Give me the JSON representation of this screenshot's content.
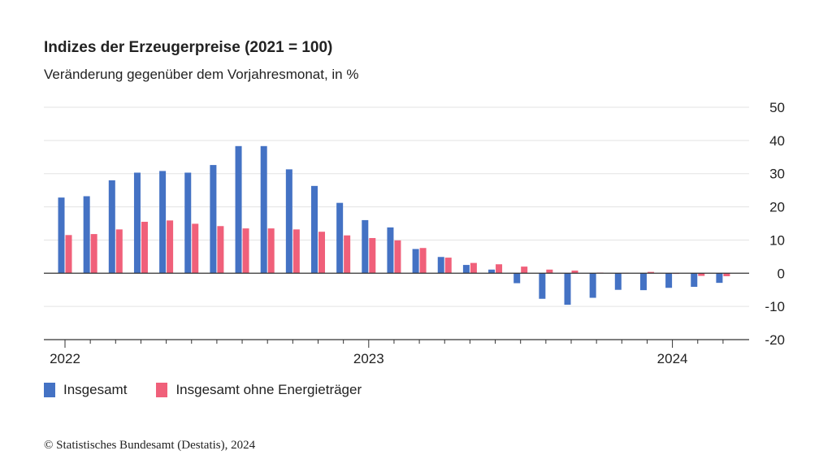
{
  "title": "Indizes der Erzeugerpreise (2021 = 100)",
  "subtitle": "Veränderung gegenüber dem Vorjahresmonat, in %",
  "footer": "© Statistisches Bundesamt (Destatis), 2024",
  "colors": {
    "blue": "#4472c4",
    "red": "#f0607a",
    "grid": "#e3e3e3",
    "axis": "#333333"
  },
  "chart_data": {
    "type": "bar",
    "ylim": [
      -20,
      50
    ],
    "yticks": [
      50,
      40,
      30,
      20,
      10,
      0,
      -10,
      -20
    ],
    "year_labels": [
      {
        "label": "2022",
        "index": 0
      },
      {
        "label": "2023",
        "index": 12
      },
      {
        "label": "2024",
        "index": 24
      }
    ],
    "categories": [
      "2022-01",
      "2022-02",
      "2022-03",
      "2022-04",
      "2022-05",
      "2022-06",
      "2022-07",
      "2022-08",
      "2022-09",
      "2022-10",
      "2022-11",
      "2022-12",
      "2023-01",
      "2023-02",
      "2023-03",
      "2023-04",
      "2023-05",
      "2023-06",
      "2023-07",
      "2023-08",
      "2023-09",
      "2023-10",
      "2023-11",
      "2023-12",
      "2024-01",
      "2024-02",
      "2024-03"
    ],
    "series": [
      {
        "name": "Insgesamt",
        "values": [
          22.8,
          23.2,
          28.0,
          30.3,
          30.8,
          30.3,
          32.6,
          38.3,
          38.3,
          31.3,
          26.3,
          21.2,
          16.0,
          13.8,
          7.3,
          4.9,
          2.5,
          1.1,
          -3.0,
          -7.7,
          -9.5,
          -7.4,
          -5.0,
          -5.1,
          -4.4,
          -4.1,
          -2.9
        ]
      },
      {
        "name": "Insgesamt ohne Energieträger",
        "values": [
          11.5,
          11.8,
          13.2,
          15.5,
          15.9,
          14.9,
          14.2,
          13.5,
          13.5,
          13.2,
          12.5,
          11.4,
          10.6,
          9.9,
          7.6,
          4.7,
          3.1,
          2.7,
          2.0,
          1.1,
          0.8,
          0.2,
          0.1,
          0.4,
          -0.2,
          -0.8,
          -0.9
        ]
      }
    ]
  }
}
